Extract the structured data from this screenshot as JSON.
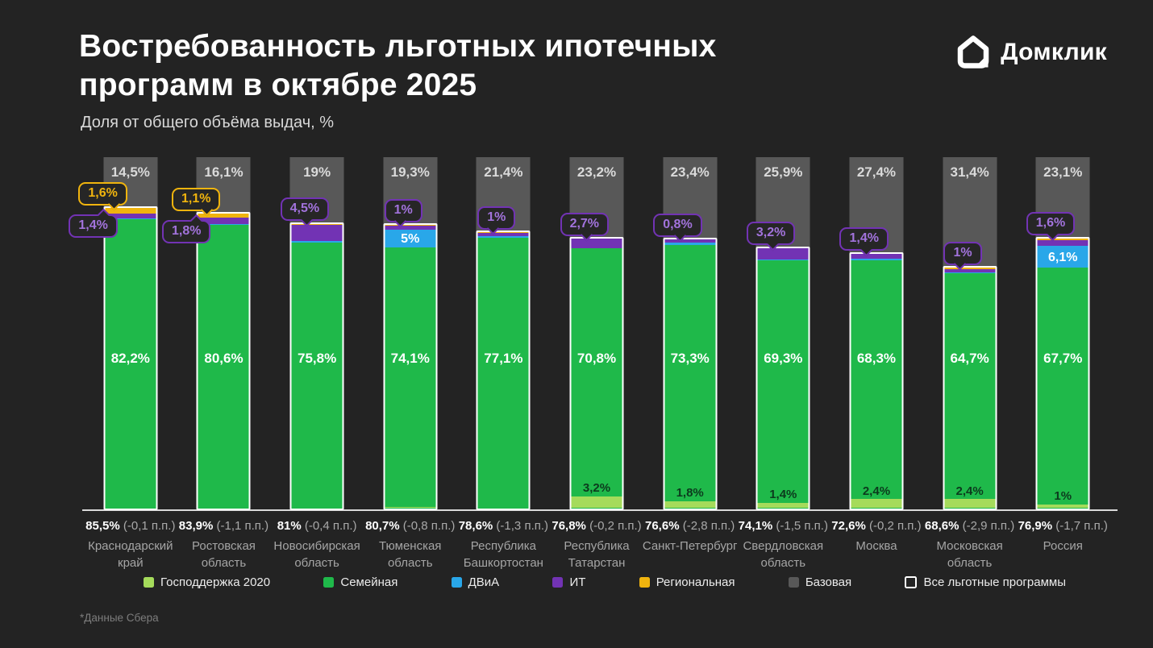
{
  "header": {
    "title_line1": "Востребованность льготных ипотечных",
    "title_line2": "программ в октябре 2025",
    "subtitle": "Доля от общего объёма выдач, %",
    "brand": "Домклик"
  },
  "footnote": "*Данные Сбера",
  "colors": {
    "background": "#232323",
    "gos": "#a5db5b",
    "sem": "#1fb94a",
    "dvia": "#29a7e9",
    "it": "#7233b4",
    "reg": "#f0b40e",
    "base": "#585858",
    "outline": "#ffffff"
  },
  "legend": [
    {
      "key": "gos",
      "label": "Господдержка 2020"
    },
    {
      "key": "sem",
      "label": "Семейная"
    },
    {
      "key": "dvia",
      "label": "ДВиА"
    },
    {
      "key": "it",
      "label": "ИТ"
    },
    {
      "key": "reg",
      "label": "Региональная"
    },
    {
      "key": "base",
      "label": "Базовая"
    },
    {
      "key": "all",
      "label": "Все льготные программы"
    }
  ],
  "chart_data": {
    "type": "bar",
    "stacked": true,
    "unit": "%",
    "ylim": [
      0,
      100
    ],
    "stack_order_bottom_to_top": [
      "gos",
      "sem",
      "dvia",
      "it",
      "reg",
      "base"
    ],
    "categories": [
      [
        "Краснодарский",
        "край"
      ],
      [
        "Ростовская",
        "область"
      ],
      [
        "Новосибирская",
        "область"
      ],
      [
        "Тюменская",
        "область"
      ],
      [
        "Республика",
        "Башкортостан"
      ],
      [
        "Республика",
        "Татарстан"
      ],
      [
        "Санкт-Петербург"
      ],
      [
        "Свердловская",
        "область"
      ],
      [
        "Москва"
      ],
      [
        "Московская",
        "область"
      ],
      [
        "Россия"
      ]
    ],
    "series": [
      {
        "key": "gos",
        "name": "Господдержка 2020",
        "values": [
          0,
          0,
          0,
          0.3,
          0,
          3.2,
          1.8,
          1.4,
          2.4,
          2.4,
          1.0
        ],
        "labels": [
          "",
          "",
          "",
          "",
          "",
          "3,2%",
          "1,8%",
          "1,4%",
          "2,4%",
          "2,4%",
          "1%"
        ]
      },
      {
        "key": "sem",
        "name": "Семейная",
        "values": [
          82.2,
          80.6,
          75.8,
          74.1,
          77.1,
          70.8,
          73.3,
          69.3,
          68.3,
          64.7,
          67.7
        ],
        "labels": [
          "82,2%",
          "80,6%",
          "75,8%",
          "74,1%",
          "77,1%",
          "70,8%",
          "73,3%",
          "69,3%",
          "68,3%",
          "64,7%",
          "67,7%"
        ]
      },
      {
        "key": "dvia",
        "name": "ДВиА",
        "values": [
          0.3,
          0.4,
          0.3,
          5.0,
          0.3,
          0.1,
          0.6,
          0.1,
          0.4,
          0.1,
          6.1
        ],
        "labels": [
          "",
          "",
          "",
          "5%",
          "",
          "",
          "",
          "",
          "",
          "",
          "6,1%"
        ]
      },
      {
        "key": "it",
        "name": "ИТ",
        "values": [
          1.4,
          1.8,
          4.5,
          1.0,
          1.0,
          2.7,
          0.8,
          3.2,
          1.4,
          1.0,
          1.6
        ],
        "labels": [
          "",
          "",
          "",
          "",
          "",
          "",
          "",
          "",
          "",
          "",
          ""
        ]
      },
      {
        "key": "reg",
        "name": "Региональная",
        "values": [
          1.6,
          1.1,
          0.4,
          0.3,
          0.2,
          0,
          0.1,
          0.1,
          0.1,
          0.4,
          0.5
        ],
        "labels": [
          "",
          "",
          "",
          "",
          "",
          "",
          "",
          "",
          "",
          "",
          ""
        ]
      },
      {
        "key": "base",
        "name": "Базовая",
        "values": [
          14.5,
          16.1,
          19,
          19.3,
          21.4,
          23.2,
          23.4,
          25.9,
          27.4,
          31.4,
          23.1
        ],
        "labels": [
          "14,5%",
          "16,1%",
          "19%",
          "19,3%",
          "21,4%",
          "23,2%",
          "23,4%",
          "25,9%",
          "27,4%",
          "31,4%",
          "23,1%"
        ]
      }
    ],
    "totals": [
      {
        "label": "85,5%",
        "delta": "(-0,1 п.п.)"
      },
      {
        "label": "83,9%",
        "delta": "(-1,1 п.п.)"
      },
      {
        "label": "81%",
        "delta": "(-0,4 п.п.)"
      },
      {
        "label": "80,7%",
        "delta": "(-0,8 п.п.)"
      },
      {
        "label": "78,6%",
        "delta": "(-1,3 п.п.)"
      },
      {
        "label": "76,8%",
        "delta": "(-0,2 п.п.)"
      },
      {
        "label": "76,6%",
        "delta": "(-2,8 п.п.)"
      },
      {
        "label": "74,1%",
        "delta": "(-1,5 п.п.)"
      },
      {
        "label": "72,6%",
        "delta": "(-0,2 п.п.)"
      },
      {
        "label": "68,6%",
        "delta": "(-2,9 п.п.)"
      },
      {
        "label": "76,9%",
        "delta": "(-1,7 п.п.)"
      }
    ],
    "callouts": [
      [
        {
          "series": "reg",
          "text": "1,6%"
        },
        {
          "series": "it",
          "text": "1,4%",
          "below": true
        }
      ],
      [
        {
          "series": "reg",
          "text": "1,1%"
        },
        {
          "series": "it",
          "text": "1,8%",
          "below": true
        }
      ],
      [
        {
          "series": "it",
          "text": "4,5%"
        }
      ],
      [
        {
          "series": "it",
          "text": "1%"
        }
      ],
      [
        {
          "series": "it",
          "text": "1%"
        }
      ],
      [
        {
          "series": "it",
          "text": "2,7%"
        }
      ],
      [
        {
          "series": "it",
          "text": "0,8%"
        }
      ],
      [
        {
          "series": "it",
          "text": "3,2%"
        }
      ],
      [
        {
          "series": "it",
          "text": "1,4%"
        }
      ],
      [
        {
          "series": "it",
          "text": "1%"
        }
      ],
      [
        {
          "series": "it",
          "text": "1,6%"
        }
      ]
    ]
  }
}
